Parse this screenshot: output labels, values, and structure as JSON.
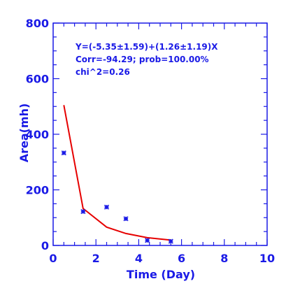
{
  "chart_data": {
    "type": "scatter",
    "xlabel": "Time (Day)",
    "ylabel": "Area(mh)",
    "xlim": [
      0,
      10
    ],
    "ylim": [
      0,
      800
    ],
    "x_ticks": [
      0,
      2,
      4,
      6,
      8,
      10
    ],
    "y_ticks": [
      0,
      200,
      400,
      600,
      800
    ],
    "grid": false,
    "annotations": [
      "Y=(-5.35±1.59)+(1.26±1.19)X",
      "Corr=-94.29;  prob=100.00%",
      "chi^2=0.26"
    ],
    "series": [
      {
        "type": "scatter",
        "marker": "asterisk",
        "color": "#1a1ae6",
        "x": [
          0.5,
          1.4,
          2.5,
          3.4,
          4.4,
          5.5
        ],
        "y": [
          333,
          122,
          138,
          96,
          18,
          15
        ]
      },
      {
        "type": "line",
        "color": "#e60000",
        "x": [
          0.5,
          1.4,
          2.5,
          3.4,
          4.4,
          5.5
        ],
        "y": [
          505,
          133,
          66,
          43,
          28,
          19
        ]
      }
    ]
  }
}
